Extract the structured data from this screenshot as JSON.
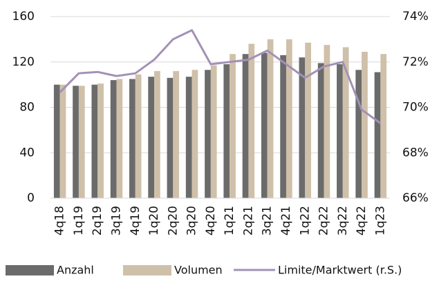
{
  "chart_data": {
    "type": "bar",
    "categories": [
      "4q18",
      "1q19",
      "2q19",
      "3q19",
      "4q19",
      "1q20",
      "2q20",
      "3q20",
      "4q20",
      "1q21",
      "2q21",
      "3q21",
      "4q21",
      "1q22",
      "2q22",
      "3q22",
      "4q22",
      "1q23"
    ],
    "series": [
      {
        "name": "Anzahl",
        "color": "#6b6b6b",
        "values": [
          100,
          99,
          100,
          104,
          105,
          107,
          106,
          107,
          113,
          118,
          127,
          128,
          126,
          124,
          119,
          118,
          113,
          111
        ]
      },
      {
        "name": "Volumen",
        "color": "#cfc0aa",
        "values": [
          100,
          99,
          101,
          105,
          109,
          112,
          112,
          113,
          117,
          127,
          136,
          140,
          140,
          137,
          135,
          133,
          129,
          127
        ]
      },
      {
        "name": "Limite/Marktwert (r.S.)",
        "color": "#a391b5",
        "type": "line",
        "axis": "y2",
        "values": [
          70.66,
          71.5,
          71.56,
          71.38,
          71.5,
          72.1,
          73.0,
          73.4,
          71.9,
          72.0,
          72.1,
          72.5,
          71.9,
          71.3,
          71.8,
          72.0,
          69.9,
          69.3
        ]
      }
    ],
    "ylim": [
      0,
      160
    ],
    "yticks": [
      0,
      40,
      80,
      120,
      160
    ],
    "y2lim": [
      66,
      74
    ],
    "y2ticks": [
      {
        "value": 66,
        "label": "66%"
      },
      {
        "value": 68,
        "label": "68%"
      },
      {
        "value": 70,
        "label": "70%"
      },
      {
        "value": 72,
        "label": "72%"
      },
      {
        "value": 74,
        "label": "74%"
      }
    ],
    "grid": true,
    "legend": "bottom"
  }
}
